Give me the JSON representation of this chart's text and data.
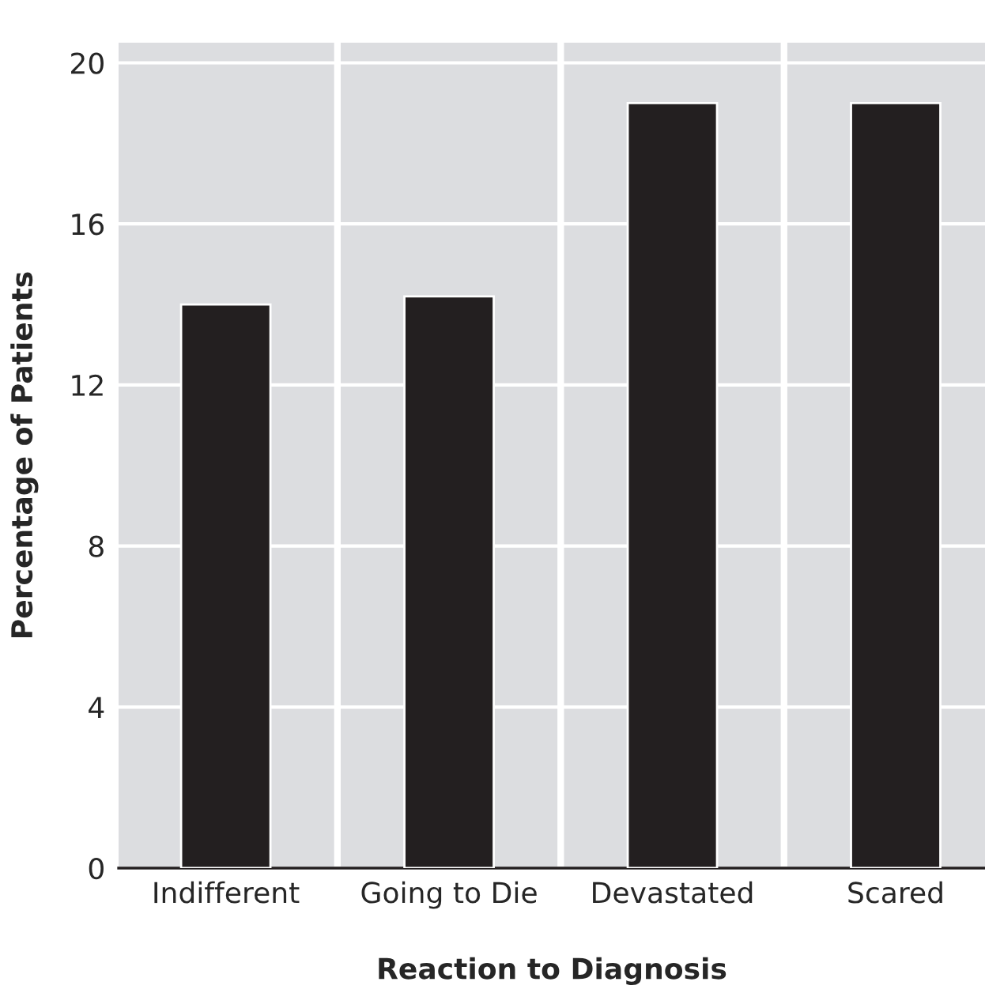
{
  "chart_data": {
    "type": "bar",
    "xlabel": "Reaction to Diagnosis",
    "ylabel": "Percentage of Patients",
    "categories": [
      "Indifferent",
      "Going to Die",
      "Devastated",
      "Scared"
    ],
    "values": [
      14,
      14.2,
      19,
      19
    ],
    "color": "#231f20",
    "ylim": [
      0,
      20.5
    ],
    "yticks": [
      0,
      4,
      8,
      12,
      16,
      20
    ],
    "grid": "y"
  }
}
